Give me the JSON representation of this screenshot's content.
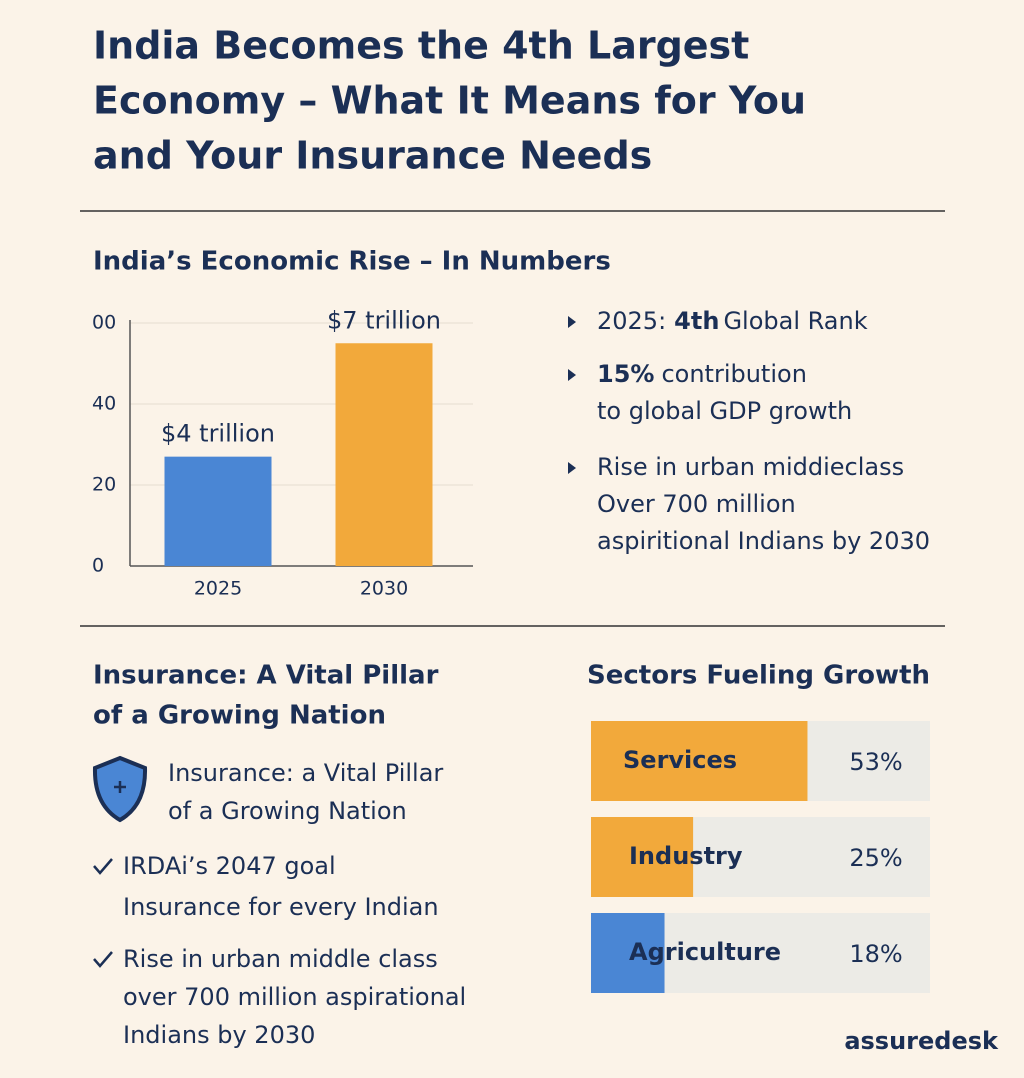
{
  "title": [
    "India Becomes the 4th Largest",
    "Economy – What It Means for You",
    "and Your Insurance Needs"
  ],
  "section1": {
    "heading": "India’s Economic Rise – In Numbers",
    "bullets": [
      [
        [
          "2025:",
          "4th",
          "Global Rank"
        ]
      ],
      [
        [
          "15%",
          "contribution"
        ],
        [
          "to global GDP growth"
        ]
      ],
      [
        [
          "Rise in urban middieclass"
        ],
        [
          "Over 700 million"
        ],
        [
          "aspiritional Indians by 2030"
        ]
      ]
    ]
  },
  "chart_data": [
    {
      "type": "bar",
      "categories": [
        "2025",
        "2030"
      ],
      "values": [
        27,
        55
      ],
      "colors": [
        "#4a86d4",
        "#f2a93b"
      ],
      "annotations": [
        "$4 trillion",
        "$7 trillion"
      ],
      "ylim": [
        0,
        60
      ],
      "yticks": [
        0,
        20,
        40,
        {
          "value": 60,
          "label": "00"
        }
      ],
      "grid": true
    },
    {
      "type": "hbar",
      "title": "Sectors Fueling Growth",
      "categories": [
        "Services",
        "Industry",
        "Agriculture"
      ],
      "values": [
        53,
        25,
        18
      ],
      "value_labels": [
        "53%",
        "25%",
        "18%"
      ],
      "colors": [
        "#f2a93b",
        "#f2a93b",
        "#4a86d4"
      ],
      "xlim": [
        0,
        83
      ]
    }
  ],
  "section2": {
    "heading": [
      "Insurance: A Vital Pillar",
      "of a Growing Nation"
    ],
    "shield_text": [
      "Insurance: a Vital Pillar",
      "of a Growing Nation"
    ],
    "checks": [
      [
        "IRDAi’s 2047 goal",
        "Insurance for every Indian"
      ],
      [
        "Rise in urban middle class",
        "over 700 million aspirational",
        "Indians by 2030"
      ]
    ]
  },
  "brand": "assuredesk"
}
